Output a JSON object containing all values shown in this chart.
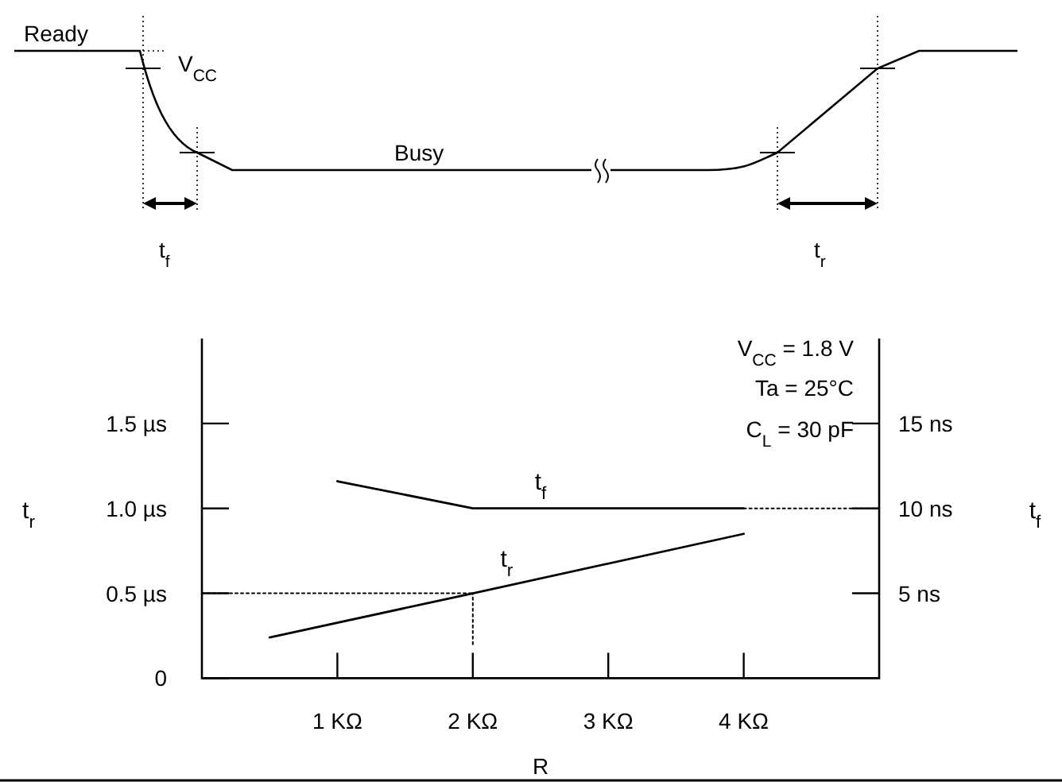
{
  "chart_data": {
    "type": "line",
    "xlabel": "R",
    "ylabel": "t$_{r}$",
    "y2label": "t$_{f}$",
    "xlim": [
      0,
      5
    ],
    "xticks": [
      {
        "value": 1,
        "label": "1 KΩ"
      },
      {
        "value": 2,
        "label": "2 KΩ"
      },
      {
        "value": 3,
        "label": "3 KΩ"
      },
      {
        "value": 4,
        "label": "4 KΩ"
      }
    ],
    "ylim": [
      0,
      2
    ],
    "yticks": [
      0,
      {
        "value": 0.5,
        "label": "0.5 µs"
      },
      {
        "value": 1,
        "label": "1.0 µs"
      },
      {
        "value": 1.5,
        "label": "1.5 µs"
      }
    ],
    "y2lim": [
      0,
      20
    ],
    "y2ticks": [
      {
        "value": 5,
        "label": "5 ns"
      },
      {
        "value": 10,
        "label": "10 ns"
      },
      {
        "value": 15,
        "label": "15 ns"
      }
    ],
    "grid": false,
    "marker": "none",
    "series": [
      {
        "name": "t$_{r}$",
        "color": "#000000",
        "x": [
          0.5,
          2,
          4
        ],
        "values": [
          0.24,
          0.5,
          0.85
        ]
      },
      {
        "name": "t$_{f}$",
        "color": "#000000",
        "axis": "y2",
        "x": [
          1,
          2,
          4
        ],
        "values": [
          11.6,
          10,
          10
        ]
      },
      {
        "color": "#000000",
        "axis": "y2",
        "line_style": "dotted",
        "x": [
          4,
          5
        ],
        "values": [
          10,
          10
        ]
      },
      {
        "color": "#000000",
        "line_style": "dotted",
        "x": [
          0,
          2
        ],
        "values": [
          0.5,
          0.5
        ]
      },
      {
        "color": "#000000",
        "line_style": "dotted",
        "x": [
          2,
          2
        ],
        "values": [
          0.2,
          0.5
        ]
      }
    ],
    "annotations": [
      "Ready",
      "V$_{CC}$",
      "Busy",
      "t$_{f}$",
      "t$_{r}$",
      "V$_{CC}$ = 1.8 V",
      "Ta = 25°C",
      "C$_{L}$ = 30 pF"
    ]
  }
}
